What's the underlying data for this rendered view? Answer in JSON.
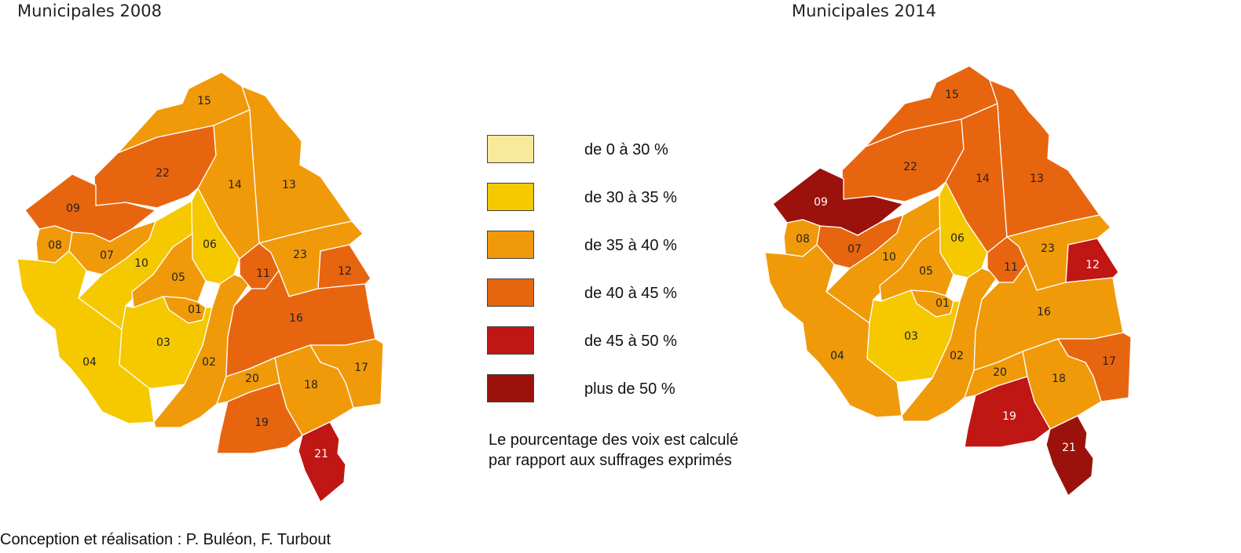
{
  "maps": {
    "left_title": "Municipales 2008",
    "right_title": "Municipales 2014"
  },
  "colors": {
    "c1": "#F9E99A",
    "c2": "#F5C800",
    "c3": "#F09A0A",
    "c4": "#E8650F",
    "c5": "#C01614",
    "c6": "#9A120B"
  },
  "legend": {
    "items": [
      {
        "label": "de 0 à 30 %",
        "color": "#F9E99A"
      },
      {
        "label": "de 30 à 35 %",
        "color": "#F5C800"
      },
      {
        "label": "de 35 à 40 %",
        "color": "#F09A0A"
      },
      {
        "label": "de 40 à 45 %",
        "color": "#E8650F"
      },
      {
        "label": "de 45 à 50 %",
        "color": "#C01614"
      },
      {
        "label": "plus de 50 %",
        "color": "#9A120B"
      }
    ]
  },
  "note": {
    "line1": "Le pourcentage des voix est calculé",
    "line2": "par rapport aux suffrages exprimés"
  },
  "credit": "Conception et réalisation : P. Buléon, F. Turbout",
  "districts": {
    "d01": "01",
    "d02": "02",
    "d03": "03",
    "d04": "04",
    "d05": "05",
    "d06": "06",
    "d07": "07",
    "d08": "08",
    "d09": "09",
    "d10": "10",
    "d11": "11",
    "d12": "12",
    "d13": "13",
    "d14": "14",
    "d15": "15",
    "d16": "16",
    "d17": "17",
    "d18": "18",
    "d19": "19",
    "d20": "20",
    "d21": "21",
    "d22": "22",
    "d23": "23"
  }
}
